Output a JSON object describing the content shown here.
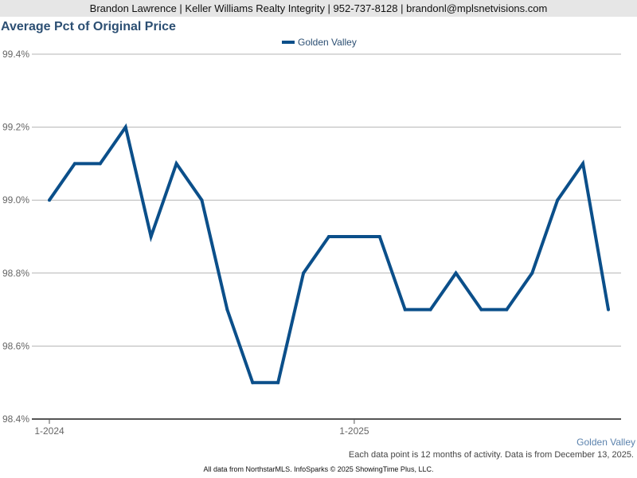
{
  "header": {
    "text": "Brandon Lawrence | Keller Williams Realty Integrity | 952-737-8128 | brandonl@mplsnetvisions.com"
  },
  "chart_data": {
    "type": "line",
    "title": "Average Pct of Original Price",
    "xlabel": "",
    "ylabel": "",
    "ylim": [
      98.4,
      99.4
    ],
    "y_ticks": [
      "99.4%",
      "99.2%",
      "99.0%",
      "98.8%",
      "98.6%",
      "98.4%"
    ],
    "y_tick_values": [
      99.4,
      99.2,
      99.0,
      98.8,
      98.6,
      98.4
    ],
    "x": [
      "2024-01",
      "2024-02",
      "2024-03",
      "2024-04",
      "2024-05",
      "2024-06",
      "2024-07",
      "2024-08",
      "2024-09",
      "2024-10",
      "2024-11",
      "2024-12",
      "2025-01",
      "2025-02",
      "2025-03",
      "2025-04",
      "2025-05",
      "2025-06",
      "2025-07",
      "2025-08",
      "2025-09",
      "2025-10",
      "2025-11"
    ],
    "x_tick_labels": [
      {
        "label": "1-2024",
        "value": "2024-01"
      },
      {
        "label": "1-2025",
        "value": "2025-01"
      }
    ],
    "series": [
      {
        "name": "Golden Valley",
        "color": "#0b4f8a",
        "values": [
          99.0,
          99.1,
          99.1,
          99.2,
          98.9,
          99.1,
          99.0,
          98.7,
          98.5,
          98.5,
          98.8,
          98.9,
          98.9,
          98.9,
          98.7,
          98.7,
          98.8,
          98.7,
          98.7,
          98.8,
          99.0,
          99.1,
          98.7
        ]
      }
    ],
    "grid": true,
    "legend": "top-center"
  },
  "series_label": "Golden Valley",
  "footnote": "Each data point is 12 months of activity. Data is from December 13, 2025.",
  "footer": "All data from NorthstarMLS. InfoSparks © 2025 ShowingTime Plus, LLC."
}
